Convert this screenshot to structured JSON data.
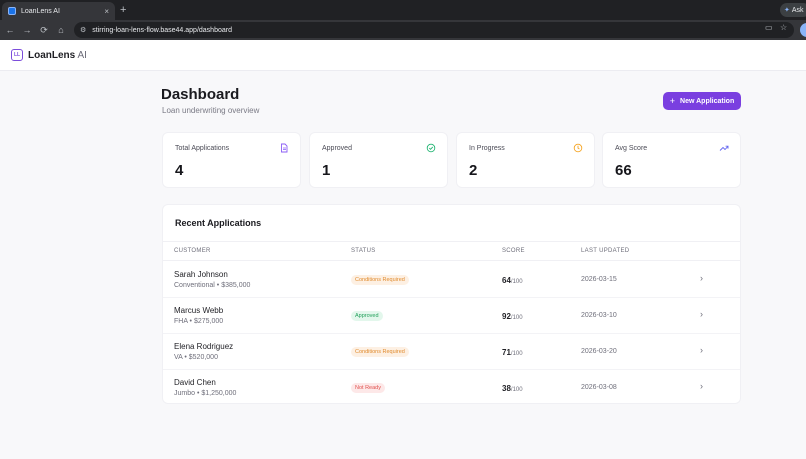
{
  "browser": {
    "tab_title": "LoanLens AI",
    "tab_close": "×",
    "new_tab": "+",
    "url": "stirring-loan-lens-flow.base44.app/dashboard",
    "ask_label": "Ask"
  },
  "app": {
    "logo_strong": "LoanLens",
    "logo_suffix": " AI",
    "logo_mark": "LL"
  },
  "page": {
    "title": "Dashboard",
    "subtitle": "Loan underwriting overview",
    "new_app_label": "New Application"
  },
  "stats": [
    {
      "label": "Total Applications",
      "value": "4",
      "icon": "document-icon",
      "color": "#8b5cf6"
    },
    {
      "label": "Approved",
      "value": "1",
      "icon": "check-circle-icon",
      "color": "#22b573"
    },
    {
      "label": "In Progress",
      "value": "2",
      "icon": "clock-icon",
      "color": "#f5a524"
    },
    {
      "label": "Avg Score",
      "value": "66",
      "icon": "trending-up-icon",
      "color": "#6366f1"
    }
  ],
  "recent": {
    "title": "Recent Applications",
    "columns": [
      "CUSTOMER",
      "STATUS",
      "SCORE",
      "LAST UPDATED"
    ],
    "score_max": "/100",
    "rows": [
      {
        "name": "Sarah Johnson",
        "detail": "Conventional • $385,000",
        "status": "Conditions Required",
        "status_bg": "#fdf0e3",
        "status_fg": "#e08a2c",
        "score": "64",
        "updated": "2026-03-15"
      },
      {
        "name": "Marcus Webb",
        "detail": "FHA • $275,000",
        "status": "Approved",
        "status_bg": "#e3f7ec",
        "status_fg": "#22a05a",
        "score": "92",
        "updated": "2026-03-10"
      },
      {
        "name": "Elena Rodriguez",
        "detail": "VA • $520,000",
        "status": "Conditions Required",
        "status_bg": "#fdf0e3",
        "status_fg": "#e08a2c",
        "score": "71",
        "updated": "2026-03-20"
      },
      {
        "name": "David Chen",
        "detail": "Jumbo • $1,250,000",
        "status": "Not Ready",
        "status_bg": "#fde8e8",
        "status_fg": "#e0524f",
        "score": "38",
        "updated": "2026-03-08"
      }
    ]
  }
}
